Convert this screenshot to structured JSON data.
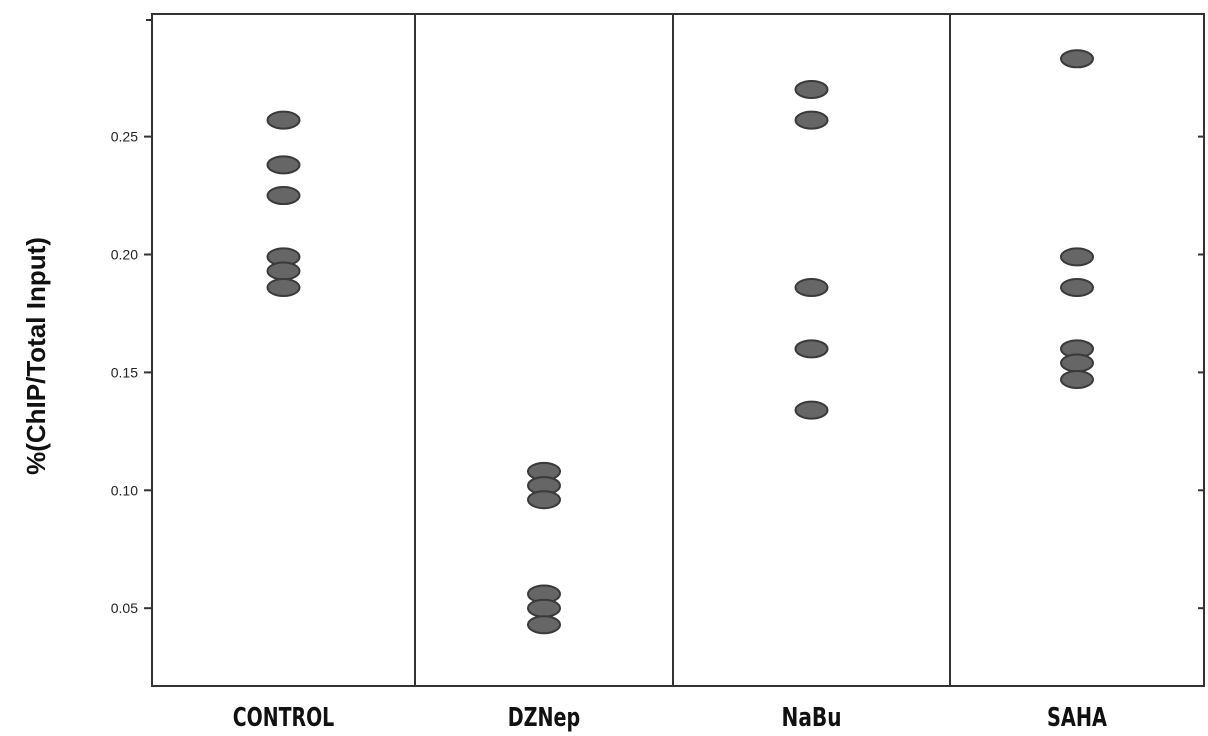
{
  "chart_data": {
    "type": "scatter",
    "ylabel": "%(ChIP/Total Input)",
    "xlabel": "",
    "ylim": [
      0.017,
      0.302
    ],
    "yticks": [
      0.05,
      0.1,
      0.15,
      0.2,
      0.25
    ],
    "ytick_labels": [
      "0.05",
      "0.10",
      "0.15",
      "0.20",
      "0.25"
    ],
    "categories": [
      "CONTROL",
      "DZNep",
      "NaBu",
      "SAHA"
    ],
    "values": [
      [
        0.257,
        0.238,
        0.225,
        0.199,
        0.193,
        0.186
      ],
      [
        0.108,
        0.102,
        0.096,
        0.056,
        0.05,
        0.043
      ],
      [
        0.27,
        0.257,
        0.186,
        0.16,
        0.134
      ],
      [
        0.283,
        0.199,
        0.186,
        0.16,
        0.154,
        0.147
      ]
    ],
    "grid": false,
    "marker_color": "#666666"
  }
}
